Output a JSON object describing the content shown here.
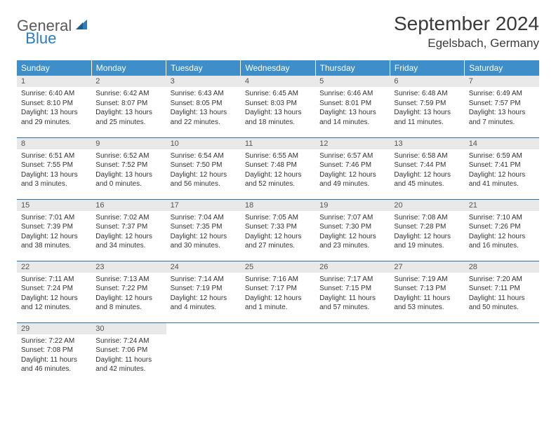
{
  "brand": {
    "part1": "General",
    "part2": "Blue"
  },
  "title": "September 2024",
  "location": "Egelsbach, Germany",
  "colors": {
    "header_bg": "#3d8ec9",
    "header_text": "#ffffff",
    "daynum_bg": "#e9e9e9",
    "row_border": "#2f6fa3",
    "body_text": "#333333",
    "brand_gray": "#5a5a5a",
    "brand_blue": "#2b7bbf"
  },
  "fonts": {
    "title_size": 28,
    "location_size": 17,
    "dayhead_size": 12,
    "daynum_size": 11,
    "cell_size": 10
  },
  "day_headers": [
    "Sunday",
    "Monday",
    "Tuesday",
    "Wednesday",
    "Thursday",
    "Friday",
    "Saturday"
  ],
  "days": [
    {
      "n": "1",
      "sunrise": "6:40 AM",
      "sunset": "8:10 PM",
      "daylight": "13 hours and 29 minutes."
    },
    {
      "n": "2",
      "sunrise": "6:42 AM",
      "sunset": "8:07 PM",
      "daylight": "13 hours and 25 minutes."
    },
    {
      "n": "3",
      "sunrise": "6:43 AM",
      "sunset": "8:05 PM",
      "daylight": "13 hours and 22 minutes."
    },
    {
      "n": "4",
      "sunrise": "6:45 AM",
      "sunset": "8:03 PM",
      "daylight": "13 hours and 18 minutes."
    },
    {
      "n": "5",
      "sunrise": "6:46 AM",
      "sunset": "8:01 PM",
      "daylight": "13 hours and 14 minutes."
    },
    {
      "n": "6",
      "sunrise": "6:48 AM",
      "sunset": "7:59 PM",
      "daylight": "13 hours and 11 minutes."
    },
    {
      "n": "7",
      "sunrise": "6:49 AM",
      "sunset": "7:57 PM",
      "daylight": "13 hours and 7 minutes."
    },
    {
      "n": "8",
      "sunrise": "6:51 AM",
      "sunset": "7:55 PM",
      "daylight": "13 hours and 3 minutes."
    },
    {
      "n": "9",
      "sunrise": "6:52 AM",
      "sunset": "7:52 PM",
      "daylight": "13 hours and 0 minutes."
    },
    {
      "n": "10",
      "sunrise": "6:54 AM",
      "sunset": "7:50 PM",
      "daylight": "12 hours and 56 minutes."
    },
    {
      "n": "11",
      "sunrise": "6:55 AM",
      "sunset": "7:48 PM",
      "daylight": "12 hours and 52 minutes."
    },
    {
      "n": "12",
      "sunrise": "6:57 AM",
      "sunset": "7:46 PM",
      "daylight": "12 hours and 49 minutes."
    },
    {
      "n": "13",
      "sunrise": "6:58 AM",
      "sunset": "7:44 PM",
      "daylight": "12 hours and 45 minutes."
    },
    {
      "n": "14",
      "sunrise": "6:59 AM",
      "sunset": "7:41 PM",
      "daylight": "12 hours and 41 minutes."
    },
    {
      "n": "15",
      "sunrise": "7:01 AM",
      "sunset": "7:39 PM",
      "daylight": "12 hours and 38 minutes."
    },
    {
      "n": "16",
      "sunrise": "7:02 AM",
      "sunset": "7:37 PM",
      "daylight": "12 hours and 34 minutes."
    },
    {
      "n": "17",
      "sunrise": "7:04 AM",
      "sunset": "7:35 PM",
      "daylight": "12 hours and 30 minutes."
    },
    {
      "n": "18",
      "sunrise": "7:05 AM",
      "sunset": "7:33 PM",
      "daylight": "12 hours and 27 minutes."
    },
    {
      "n": "19",
      "sunrise": "7:07 AM",
      "sunset": "7:30 PM",
      "daylight": "12 hours and 23 minutes."
    },
    {
      "n": "20",
      "sunrise": "7:08 AM",
      "sunset": "7:28 PM",
      "daylight": "12 hours and 19 minutes."
    },
    {
      "n": "21",
      "sunrise": "7:10 AM",
      "sunset": "7:26 PM",
      "daylight": "12 hours and 16 minutes."
    },
    {
      "n": "22",
      "sunrise": "7:11 AM",
      "sunset": "7:24 PM",
      "daylight": "12 hours and 12 minutes."
    },
    {
      "n": "23",
      "sunrise": "7:13 AM",
      "sunset": "7:22 PM",
      "daylight": "12 hours and 8 minutes."
    },
    {
      "n": "24",
      "sunrise": "7:14 AM",
      "sunset": "7:19 PM",
      "daylight": "12 hours and 4 minutes."
    },
    {
      "n": "25",
      "sunrise": "7:16 AM",
      "sunset": "7:17 PM",
      "daylight": "12 hours and 1 minute."
    },
    {
      "n": "26",
      "sunrise": "7:17 AM",
      "sunset": "7:15 PM",
      "daylight": "11 hours and 57 minutes."
    },
    {
      "n": "27",
      "sunrise": "7:19 AM",
      "sunset": "7:13 PM",
      "daylight": "11 hours and 53 minutes."
    },
    {
      "n": "28",
      "sunrise": "7:20 AM",
      "sunset": "7:11 PM",
      "daylight": "11 hours and 50 minutes."
    },
    {
      "n": "29",
      "sunrise": "7:22 AM",
      "sunset": "7:08 PM",
      "daylight": "11 hours and 46 minutes."
    },
    {
      "n": "30",
      "sunrise": "7:24 AM",
      "sunset": "7:06 PM",
      "daylight": "11 hours and 42 minutes."
    }
  ],
  "labels": {
    "sunrise": "Sunrise:",
    "sunset": "Sunset:",
    "daylight": "Daylight:"
  }
}
